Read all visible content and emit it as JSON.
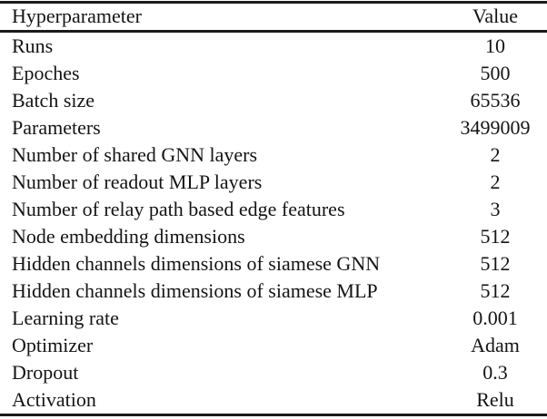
{
  "table": {
    "header": {
      "hyperparameter": "Hyperparameter",
      "value": "Value"
    },
    "rows": [
      {
        "name": "Runs",
        "value": "10"
      },
      {
        "name": "Epoches",
        "value": "500"
      },
      {
        "name": "Batch size",
        "value": "65536"
      },
      {
        "name": "Parameters",
        "value": "3499009"
      },
      {
        "name": "Number of shared GNN layers",
        "value": "2"
      },
      {
        "name": "Number of readout MLP layers",
        "value": "2"
      },
      {
        "name": "Number of relay path based edge features",
        "value": "3"
      },
      {
        "name": "Node embedding dimensions",
        "value": "512"
      },
      {
        "name": "Hidden channels dimensions of siamese GNN",
        "value": "512"
      },
      {
        "name": "Hidden channels dimensions of siamese MLP",
        "value": "512"
      },
      {
        "name": "Learning rate",
        "value": "0.001"
      },
      {
        "name": "Optimizer",
        "value": "Adam"
      },
      {
        "name": "Dropout",
        "value": "0.3"
      },
      {
        "name": "Activation",
        "value": "Relu"
      }
    ],
    "colors": {
      "background": "#ffffff",
      "text": "#141414",
      "rule": "#1a1a1a"
    }
  }
}
